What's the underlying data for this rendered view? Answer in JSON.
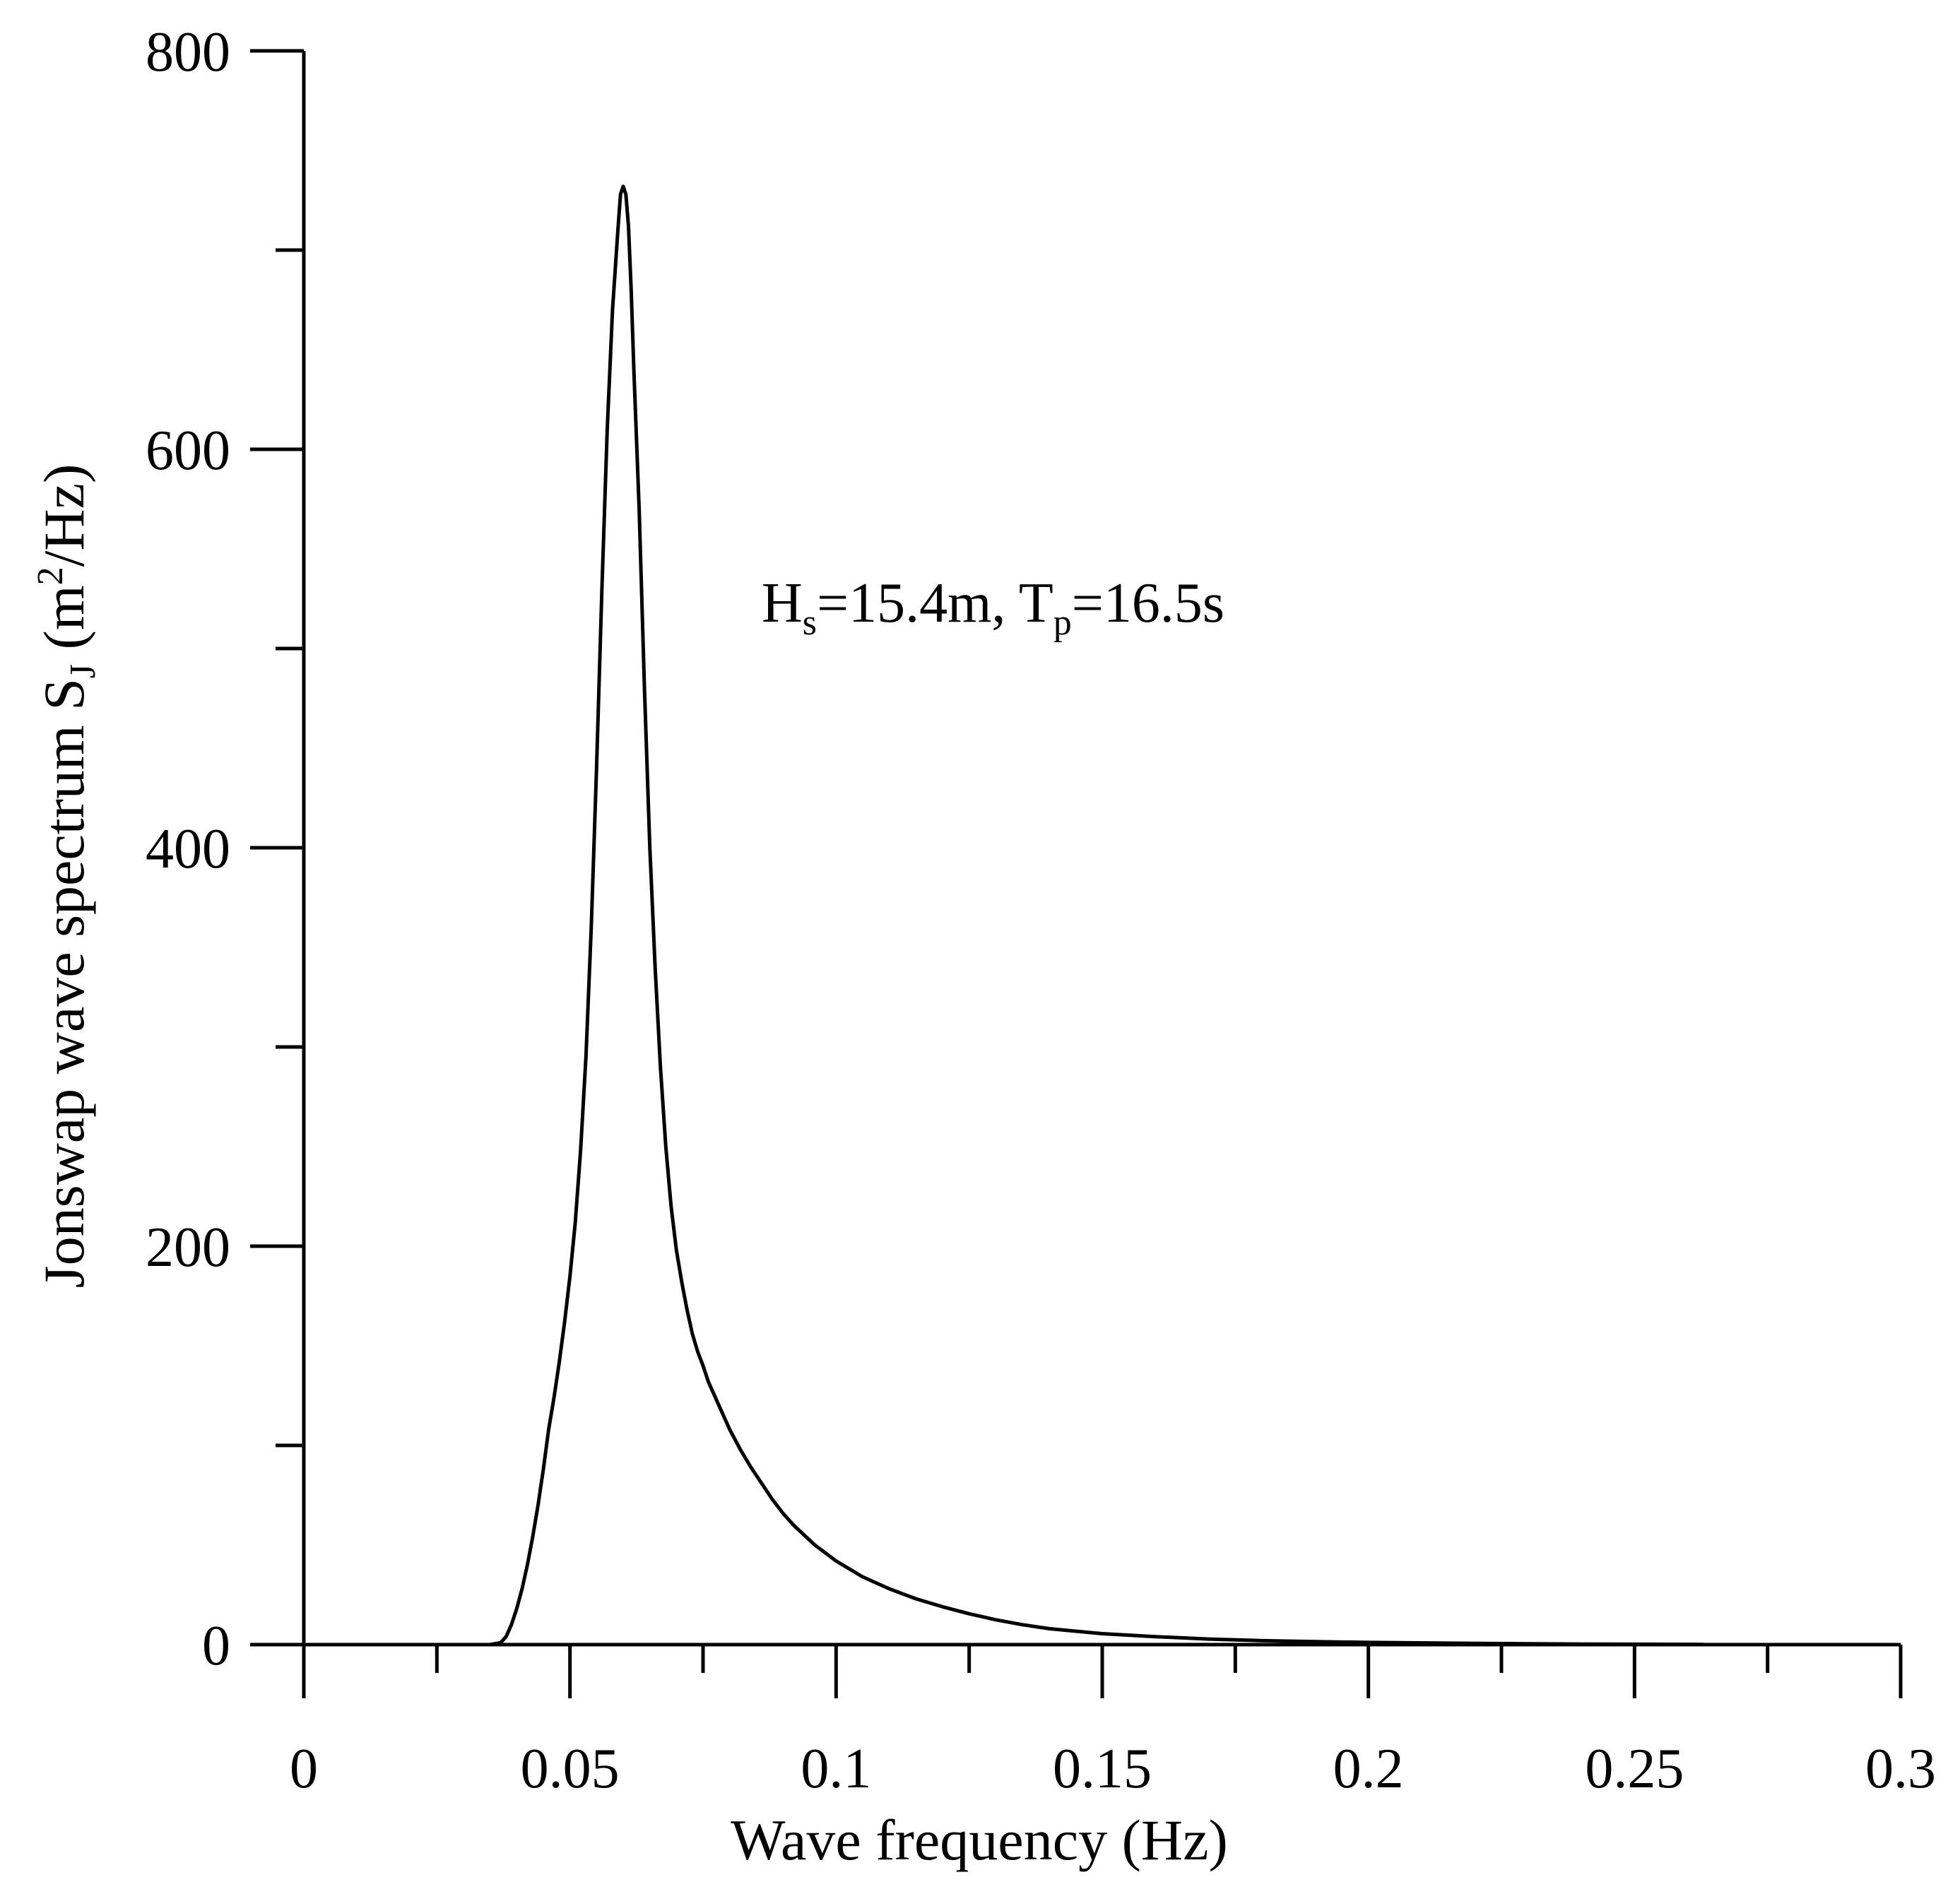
{
  "chart_data": {
    "type": "line",
    "title": "",
    "xlabel": "Wave frequency (Hz)",
    "ylabel": {
      "main": "Jonswap wave spectrum S",
      "sub": "J",
      "unit_open": " (m",
      "unit_sup": "2",
      "unit_close": "/Hz)"
    },
    "xlim": [
      0,
      0.3
    ],
    "ylim": [
      0,
      800
    ],
    "x_ticks": [
      {
        "value": 0,
        "label": "0"
      },
      {
        "value": 0.05,
        "label": "0.05"
      },
      {
        "value": 0.1,
        "label": "0.1"
      },
      {
        "value": 0.15,
        "label": "0.15"
      },
      {
        "value": 0.2,
        "label": "0.2"
      },
      {
        "value": 0.25,
        "label": "0.25"
      },
      {
        "value": 0.3,
        "label": "0.3"
      }
    ],
    "x_minor_ticks": [
      0.025,
      0.075,
      0.125,
      0.175,
      0.225,
      0.275
    ],
    "y_ticks": [
      {
        "value": 0,
        "label": "0"
      },
      {
        "value": 200,
        "label": "200"
      },
      {
        "value": 400,
        "label": "400"
      },
      {
        "value": 600,
        "label": "600"
      },
      {
        "value": 800,
        "label": "800"
      }
    ],
    "y_minor_ticks": [
      100,
      300,
      500,
      700
    ],
    "grid": false,
    "annotation": {
      "h": "H",
      "h_sub": "s",
      "mid": "=15.4m, T",
      "t_sub": "p",
      "tail": "=16.5s"
    },
    "series": [
      {
        "color": "#000000",
        "x": [
          0.0,
          0.02,
          0.035,
          0.037,
          0.038,
          0.039,
          0.04,
          0.041,
          0.042,
          0.043,
          0.044,
          0.045,
          0.046,
          0.047,
          0.048,
          0.049,
          0.05,
          0.051,
          0.052,
          0.053,
          0.054,
          0.055,
          0.056,
          0.057,
          0.058,
          0.059,
          0.0595,
          0.06,
          0.0605,
          0.061,
          0.0615,
          0.062,
          0.063,
          0.064,
          0.065,
          0.066,
          0.067,
          0.068,
          0.069,
          0.07,
          0.071,
          0.072,
          0.073,
          0.074,
          0.075,
          0.076,
          0.078,
          0.08,
          0.082,
          0.084,
          0.086,
          0.088,
          0.09,
          0.092,
          0.094,
          0.096,
          0.098,
          0.1,
          0.105,
          0.11,
          0.115,
          0.12,
          0.125,
          0.13,
          0.135,
          0.14,
          0.15,
          0.16,
          0.17,
          0.18,
          0.19,
          0.2,
          0.22,
          0.24,
          0.26,
          0.263
        ],
        "y": [
          0,
          0,
          0,
          1,
          4,
          10,
          18,
          28,
          40,
          54,
          70,
          88,
          108,
          124,
          142,
          162,
          185,
          212,
          248,
          295,
          360,
          440,
          530,
          610,
          670,
          710,
          728,
          732,
          728,
          712,
          680,
          640,
          570,
          480,
          400,
          340,
          290,
          250,
          220,
          198,
          182,
          168,
          156,
          147,
          140,
          132,
          120,
          108,
          98,
          89,
          81,
          73,
          66,
          60,
          55,
          50,
          46,
          42,
          34,
          28,
          23,
          19,
          15.5,
          12.5,
          10,
          8,
          5.5,
          4,
          2.8,
          2,
          1.5,
          1.1,
          0.6,
          0.3,
          0.15,
          0.1
        ]
      }
    ]
  }
}
